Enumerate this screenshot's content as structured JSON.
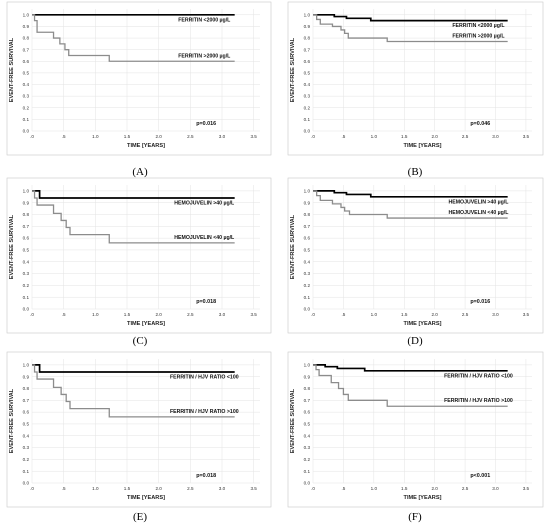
{
  "chart_data": [
    {
      "type": "line",
      "panel_label": "(A)",
      "xlabel": "TIME [YEARS]",
      "ylabel": "EVENT-FREE SURVIVAL",
      "xlim": [
        0,
        3.6
      ],
      "ylim": [
        0,
        1.05
      ],
      "xticks": [
        ".0",
        ".5",
        "1.0",
        "1.5",
        "2.0",
        "2.5",
        "3.0",
        "3.5"
      ],
      "yticks": [
        "0.0",
        "0.1",
        "0.2",
        "0.3",
        "0.4",
        "0.5",
        "0.6",
        "0.7",
        "0.8",
        "0.9",
        "1.0"
      ],
      "grid": true,
      "annotation": "p=0.016",
      "series": [
        {
          "name": "FERRITIN <2000 µg/L",
          "color": "#000000",
          "steps": [
            [
              0,
              1.0
            ],
            [
              3.2,
              1.0
            ]
          ]
        },
        {
          "name": "FERRITIN >2000 µg/L",
          "color": "#8c8c8c",
          "steps": [
            [
              0,
              1.0
            ],
            [
              0.04,
              0.95
            ],
            [
              0.08,
              0.85
            ],
            [
              0.34,
              0.8
            ],
            [
              0.44,
              0.75
            ],
            [
              0.52,
              0.7
            ],
            [
              0.58,
              0.65
            ],
            [
              1.22,
              0.6
            ],
            [
              3.2,
              0.6
            ]
          ]
        }
      ]
    },
    {
      "type": "line",
      "panel_label": "(B)",
      "xlabel": "TIME [YEARS]",
      "ylabel": "EVENT-FREE SURVIVAL",
      "xlim": [
        0,
        3.6
      ],
      "ylim": [
        0,
        1.05
      ],
      "xticks": [
        ".0",
        ".5",
        "1.0",
        "1.5",
        "2.0",
        "2.5",
        "3.0",
        "3.5"
      ],
      "yticks": [
        "0.0",
        "0.1",
        "0.2",
        "0.3",
        "0.4",
        "0.5",
        "0.6",
        "0.7",
        "0.8",
        "0.9",
        "1.0"
      ],
      "grid": true,
      "annotation": "p=0.046",
      "series": [
        {
          "name": "FERRITIN <2000 µg/L",
          "color": "#000000",
          "steps": [
            [
              0,
              1.0
            ],
            [
              0.35,
              0.985
            ],
            [
              0.55,
              0.97
            ],
            [
              0.95,
              0.95
            ],
            [
              3.2,
              0.95
            ]
          ]
        },
        {
          "name": "FERRITIN >2000 µg/L",
          "color": "#8c8c8c",
          "steps": [
            [
              0,
              1.0
            ],
            [
              0.06,
              0.96
            ],
            [
              0.12,
              0.92
            ],
            [
              0.32,
              0.9
            ],
            [
              0.46,
              0.87
            ],
            [
              0.52,
              0.84
            ],
            [
              0.58,
              0.8
            ],
            [
              1.22,
              0.77
            ],
            [
              3.2,
              0.77
            ]
          ]
        }
      ]
    },
    {
      "type": "line",
      "panel_label": "(C)",
      "xlabel": "TIME [YEARS]",
      "ylabel": "EVENT-FREE SURVIVAL",
      "xlim": [
        0,
        3.6
      ],
      "ylim": [
        0,
        1.05
      ],
      "xticks": [
        ".0",
        ".5",
        "1.0",
        "1.5",
        "2.0",
        "2.5",
        "3.0",
        "3.5"
      ],
      "yticks": [
        "0.0",
        "0.1",
        "0.2",
        "0.3",
        "0.4",
        "0.5",
        "0.6",
        "0.7",
        "0.8",
        "0.9",
        "1.0"
      ],
      "grid": true,
      "annotation": "p=0.018",
      "series": [
        {
          "name": "HEMOJUVELIN >40 µg/L",
          "color": "#000000",
          "steps": [
            [
              0,
              1.0
            ],
            [
              0.12,
              0.94
            ],
            [
              3.2,
              0.94
            ]
          ]
        },
        {
          "name": "HEMOJUVELIN <40 µg/L",
          "color": "#8c8c8c",
          "steps": [
            [
              0,
              1.0
            ],
            [
              0.04,
              0.94
            ],
            [
              0.08,
              0.88
            ],
            [
              0.34,
              0.81
            ],
            [
              0.46,
              0.75
            ],
            [
              0.54,
              0.69
            ],
            [
              0.6,
              0.63
            ],
            [
              1.22,
              0.56
            ],
            [
              3.2,
              0.56
            ]
          ]
        }
      ]
    },
    {
      "type": "line",
      "panel_label": "(D)",
      "xlabel": "TIME [YEARS]",
      "ylabel": "EVENT-FREE SURVIVAL",
      "xlim": [
        0,
        3.6
      ],
      "ylim": [
        0,
        1.05
      ],
      "xticks": [
        ".0",
        ".5",
        "1.0",
        "1.5",
        "2.0",
        "2.5",
        "3.0",
        "3.5"
      ],
      "yticks": [
        "0.0",
        "0.1",
        "0.2",
        "0.3",
        "0.4",
        "0.5",
        "0.6",
        "0.7",
        "0.8",
        "0.9",
        "1.0"
      ],
      "grid": true,
      "annotation": "p=0.016",
      "series": [
        {
          "name": "HEMOJUVELIN >40 µg/L",
          "color": "#000000",
          "steps": [
            [
              0,
              1.0
            ],
            [
              0.35,
              0.985
            ],
            [
              0.55,
              0.97
            ],
            [
              0.95,
              0.95
            ],
            [
              3.2,
              0.95
            ]
          ]
        },
        {
          "name": "HEMOJUVELIN <40 µg/L",
          "color": "#8c8c8c",
          "steps": [
            [
              0,
              1.0
            ],
            [
              0.06,
              0.96
            ],
            [
              0.12,
              0.92
            ],
            [
              0.32,
              0.89
            ],
            [
              0.46,
              0.86
            ],
            [
              0.52,
              0.83
            ],
            [
              0.6,
              0.8
            ],
            [
              1.22,
              0.77
            ],
            [
              3.2,
              0.77
            ]
          ]
        }
      ]
    },
    {
      "type": "line",
      "panel_label": "(E)",
      "xlabel": "TIME [YEARS]",
      "ylabel": "EVENT-FREE SURVIVAL",
      "xlim": [
        0,
        3.6
      ],
      "ylim": [
        0,
        1.05
      ],
      "xticks": [
        ".0",
        ".5",
        "1.0",
        "1.5",
        "2.0",
        "2.5",
        "3.0",
        "3.5"
      ],
      "yticks": [
        "0.0",
        "0.1",
        "0.2",
        "0.3",
        "0.4",
        "0.5",
        "0.6",
        "0.7",
        "0.8",
        "0.9",
        "1.0"
      ],
      "grid": true,
      "annotation": "p=0.018",
      "series": [
        {
          "name": "FERRITIN / HJV RATIO <100",
          "color": "#000000",
          "steps": [
            [
              0,
              1.0
            ],
            [
              0.12,
              0.94
            ],
            [
              3.2,
              0.94
            ]
          ]
        },
        {
          "name": "FERRITIN / HJV RATIO >100",
          "color": "#8c8c8c",
          "steps": [
            [
              0,
              1.0
            ],
            [
              0.04,
              0.94
            ],
            [
              0.08,
              0.88
            ],
            [
              0.34,
              0.81
            ],
            [
              0.46,
              0.75
            ],
            [
              0.54,
              0.69
            ],
            [
              0.6,
              0.63
            ],
            [
              1.22,
              0.56
            ],
            [
              3.2,
              0.56
            ]
          ]
        }
      ]
    },
    {
      "type": "line",
      "panel_label": "(F)",
      "xlabel": "TIME [YEARS]",
      "ylabel": "EVENT-FREE SURVIVAL",
      "xlim": [
        0,
        3.6
      ],
      "ylim": [
        0,
        1.05
      ],
      "xticks": [
        ".0",
        ".5",
        "1.0",
        "1.5",
        "2.0",
        "2.5",
        "3.0",
        "3.5"
      ],
      "yticks": [
        "0.0",
        "0.1",
        "0.2",
        "0.3",
        "0.4",
        "0.5",
        "0.6",
        "0.7",
        "0.8",
        "0.9",
        "1.0"
      ],
      "grid": true,
      "annotation": "p<0.001",
      "series": [
        {
          "name": "FERRITIN / HJV RATIO <100",
          "color": "#000000",
          "steps": [
            [
              0,
              1.0
            ],
            [
              0.2,
              0.985
            ],
            [
              0.4,
              0.97
            ],
            [
              0.85,
              0.95
            ],
            [
              3.2,
              0.95
            ]
          ]
        },
        {
          "name": "FERRITIN / HJV RATIO >100",
          "color": "#8c8c8c",
          "steps": [
            [
              0,
              1.0
            ],
            [
              0.05,
              0.96
            ],
            [
              0.1,
              0.91
            ],
            [
              0.3,
              0.85
            ],
            [
              0.42,
              0.8
            ],
            [
              0.5,
              0.75
            ],
            [
              0.58,
              0.7
            ],
            [
              1.22,
              0.65
            ],
            [
              3.2,
              0.65
            ]
          ]
        }
      ]
    }
  ]
}
